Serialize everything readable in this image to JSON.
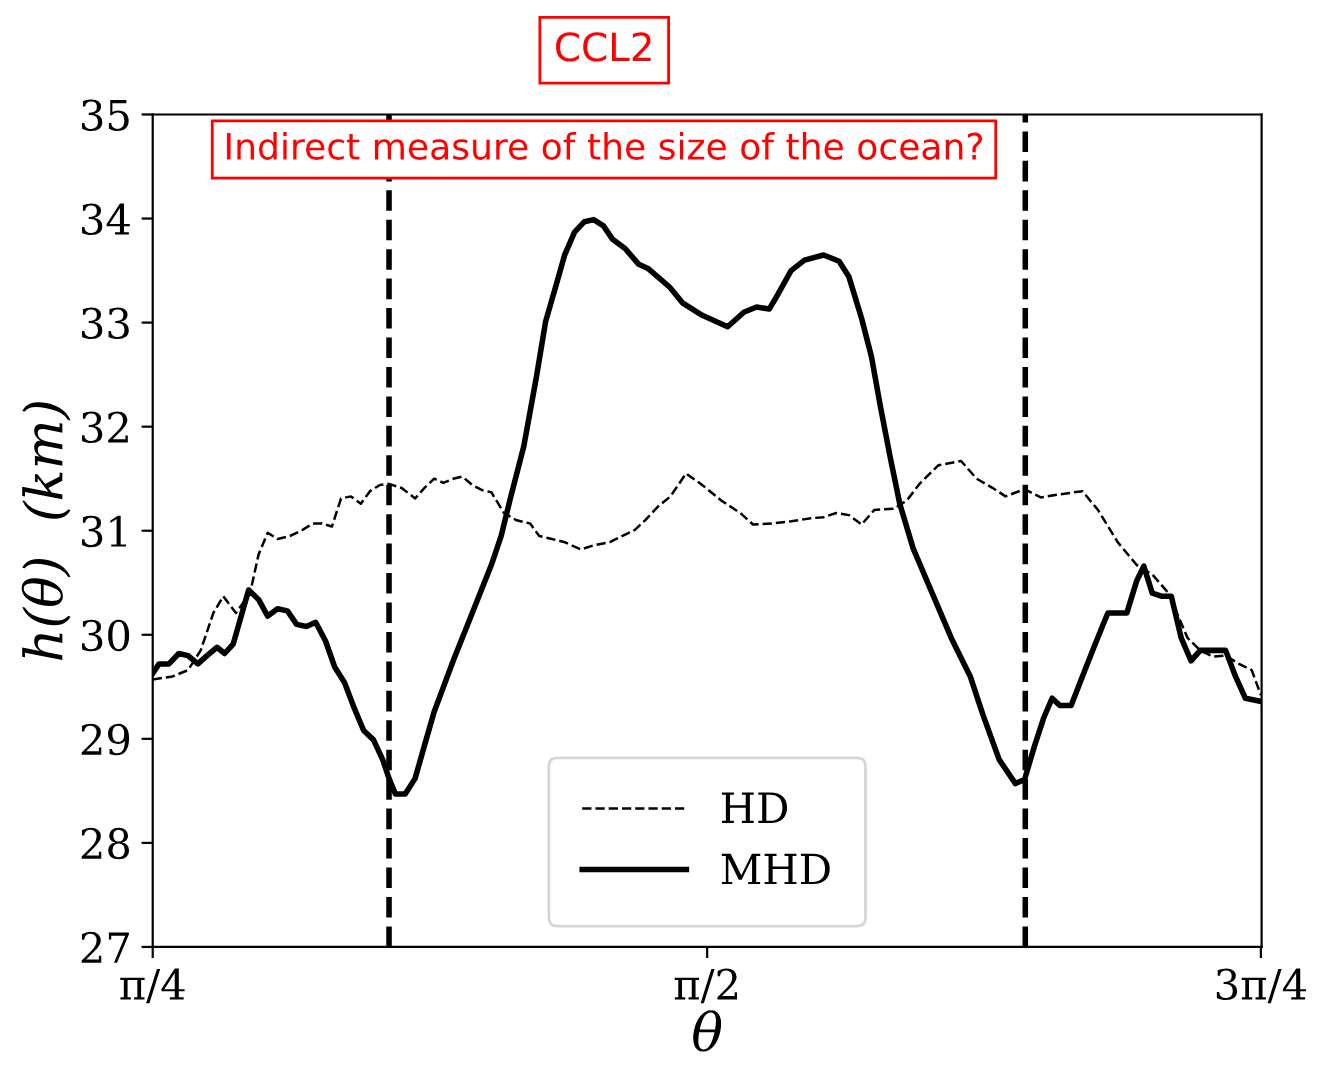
{
  "chart_data": {
    "type": "line",
    "title": "CCL2",
    "xlabel": "θ",
    "ylabel": "h(θ)  (km)",
    "annotations": [
      "Indirect measure of the size of the ocean?"
    ],
    "xlim": [
      0.785,
      2.357
    ],
    "xticks": [
      {
        "value": 0.785,
        "label": "π/4"
      },
      {
        "value": 1.571,
        "label": "π/2"
      },
      {
        "value": 2.356,
        "label": "3π/4"
      }
    ],
    "ylim": [
      27,
      35
    ],
    "yticks": [
      27,
      28,
      29,
      30,
      31,
      32,
      33,
      34,
      35
    ],
    "grid": false,
    "legend": "bottom",
    "marker": "none",
    "ref_lines": [
      {
        "axis": "x",
        "value": 1.12,
        "color": "#000000",
        "line_style": "dashed"
      },
      {
        "axis": "x",
        "value": 2.022,
        "color": "#000000",
        "line_style": "dashed"
      }
    ],
    "series": [
      {
        "name": "HD",
        "color": "#000000",
        "line_style": "dashed",
        "x": [
          0.785,
          0.813,
          0.835,
          0.853,
          0.871,
          0.885,
          0.903,
          0.923,
          0.935,
          0.948,
          0.962,
          0.98,
          0.998,
          1.012,
          1.025,
          1.039,
          1.052,
          1.066,
          1.08,
          1.093,
          1.107,
          1.12,
          1.138,
          1.157,
          1.17,
          1.184,
          1.197,
          1.211,
          1.224,
          1.238,
          1.252,
          1.265,
          1.283,
          1.301,
          1.32,
          1.333,
          1.351,
          1.369,
          1.392,
          1.41,
          1.433,
          1.451,
          1.469,
          1.483,
          1.501,
          1.519,
          1.541,
          1.564,
          1.591,
          1.618,
          1.636,
          1.663,
          1.69,
          1.718,
          1.736,
          1.754,
          1.772,
          1.79,
          1.808,
          1.835,
          1.854,
          1.872,
          1.899,
          1.931,
          1.953,
          1.976,
          1.994,
          2.021,
          2.044,
          2.071,
          2.103,
          2.125,
          2.153,
          2.18,
          2.202,
          2.225,
          2.252,
          2.27,
          2.288,
          2.306,
          2.325,
          2.343,
          2.356
        ],
        "values": [
          29.57,
          29.6,
          29.66,
          29.85,
          30.21,
          30.37,
          30.21,
          30.4,
          30.77,
          30.98,
          30.92,
          30.95,
          31.01,
          31.07,
          31.07,
          31.04,
          31.31,
          31.33,
          31.26,
          31.38,
          31.44,
          31.45,
          31.41,
          31.31,
          31.41,
          31.5,
          31.46,
          31.5,
          31.52,
          31.44,
          31.39,
          31.37,
          31.17,
          31.1,
          31.07,
          30.95,
          30.92,
          30.89,
          30.82,
          30.86,
          30.89,
          30.95,
          31.01,
          31.1,
          31.23,
          31.33,
          31.55,
          31.44,
          31.29,
          31.17,
          31.06,
          31.07,
          31.09,
          31.12,
          31.13,
          31.17,
          31.15,
          31.06,
          31.2,
          31.21,
          31.29,
          31.45,
          31.63,
          31.67,
          31.5,
          31.41,
          31.33,
          31.4,
          31.32,
          31.35,
          31.38,
          31.2,
          30.89,
          30.67,
          30.58,
          30.4,
          29.97,
          29.85,
          29.79,
          29.8,
          29.72,
          29.66,
          29.42
        ]
      },
      {
        "name": "MHD",
        "color": "#000000",
        "line_style": "solid",
        "x": [
          0.785,
          0.794,
          0.808,
          0.822,
          0.835,
          0.849,
          0.862,
          0.876,
          0.887,
          0.899,
          0.921,
          0.935,
          0.948,
          0.962,
          0.976,
          0.989,
          1.003,
          1.016,
          1.03,
          1.043,
          1.057,
          1.071,
          1.084,
          1.098,
          1.111,
          1.12,
          1.129,
          1.143,
          1.157,
          1.17,
          1.184,
          1.211,
          1.238,
          1.265,
          1.279,
          1.292,
          1.311,
          1.329,
          1.342,
          1.356,
          1.369,
          1.383,
          1.397,
          1.41,
          1.424,
          1.437,
          1.455,
          1.474,
          1.487,
          1.501,
          1.518,
          1.536,
          1.564,
          1.6,
          1.623,
          1.641,
          1.659,
          1.672,
          1.69,
          1.709,
          1.736,
          1.758,
          1.772,
          1.79,
          1.804,
          1.817,
          1.831,
          1.844,
          1.863,
          1.89,
          1.917,
          1.944,
          1.962,
          1.985,
          2.008,
          2.021,
          2.035,
          2.048,
          2.06,
          2.071,
          2.087,
          2.103,
          2.121,
          2.139,
          2.166,
          2.18,
          2.19,
          2.202,
          2.216,
          2.229,
          2.243,
          2.257,
          2.27,
          2.288,
          2.306,
          2.32,
          2.334,
          2.356
        ],
        "values": [
          29.63,
          29.72,
          29.72,
          29.82,
          29.8,
          29.72,
          29.8,
          29.88,
          29.82,
          29.91,
          30.43,
          30.34,
          30.18,
          30.25,
          30.23,
          30.1,
          30.08,
          30.12,
          29.94,
          29.69,
          29.54,
          29.29,
          29.08,
          28.99,
          28.8,
          28.62,
          28.47,
          28.47,
          28.62,
          28.93,
          29.26,
          29.75,
          30.21,
          30.67,
          30.95,
          31.31,
          31.81,
          32.48,
          33.01,
          33.34,
          33.65,
          33.87,
          33.97,
          33.99,
          33.93,
          33.8,
          33.71,
          33.56,
          33.52,
          33.44,
          33.34,
          33.19,
          33.07,
          32.96,
          33.1,
          33.15,
          33.13,
          33.28,
          33.5,
          33.6,
          33.65,
          33.59,
          33.44,
          33.04,
          32.67,
          32.18,
          31.69,
          31.26,
          30.83,
          30.4,
          29.97,
          29.6,
          29.23,
          28.8,
          28.57,
          28.61,
          28.93,
          29.2,
          29.39,
          29.32,
          29.32,
          29.6,
          29.91,
          30.21,
          30.21,
          30.52,
          30.66,
          30.4,
          30.37,
          30.37,
          29.97,
          29.75,
          29.85,
          29.85,
          29.85,
          29.6,
          29.39,
          29.36
        ]
      }
    ]
  }
}
